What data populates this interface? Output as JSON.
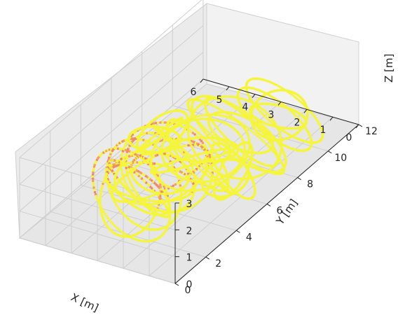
{
  "chart_data": {
    "type": "scatter",
    "projection": "3d",
    "title": "",
    "xlabel": "X [m]",
    "ylabel": "Y [m]",
    "zlabel": "Z [m]",
    "xlim": [
      0,
      6
    ],
    "ylim": [
      0,
      12
    ],
    "zlim": [
      0,
      3
    ],
    "x_ticks": [
      "0",
      "1",
      "2",
      "3",
      "4",
      "5",
      "6"
    ],
    "y_ticks": [
      "0",
      "2",
      "4",
      "6",
      "8",
      "10",
      "12"
    ],
    "z_ticks": [
      "1",
      "2",
      "3"
    ],
    "grid": true,
    "pane_color": "#f2f2f2",
    "colors": {
      "trajectory": "#f5f53a",
      "trajectory_edge": "#e6e600",
      "dense_region": "#f08a6a",
      "dense_region_alt": "#f4a25a"
    },
    "series": [
      {
        "values_description_hidden": true
      }
    ]
  }
}
